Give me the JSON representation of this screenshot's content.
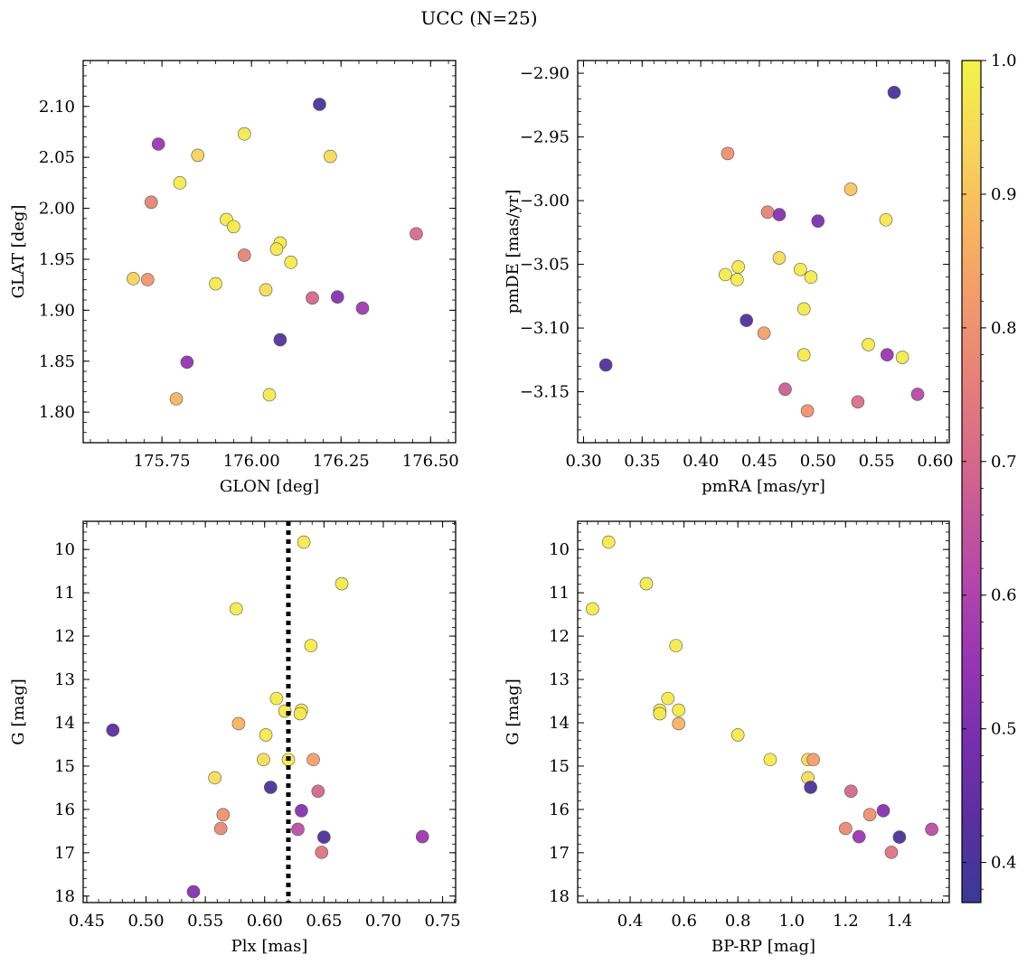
{
  "figure": {
    "title": "UCC (N=25)"
  },
  "colorbar": {
    "colormap": "plasma",
    "range": [
      0.37,
      1.0
    ],
    "ticks": [
      0.4,
      0.5,
      0.6,
      0.7,
      0.8,
      0.9,
      1.0
    ],
    "tick_labels": [
      "0.4",
      "0.5",
      "0.6",
      "0.7",
      "0.8",
      "0.9",
      "1.0"
    ]
  },
  "chart_data": [
    {
      "type": "scatter",
      "id": "lb",
      "xlabel": "GLON [deg]",
      "ylabel": "GLAT [deg]",
      "xlim": [
        175.53,
        176.57
      ],
      "ylim": [
        1.77,
        2.145
      ],
      "xticks": [
        175.75,
        176.0,
        176.25,
        176.5
      ],
      "xtick_labels": [
        "175.75",
        "176.00",
        "176.25",
        "176.50"
      ],
      "yticks": [
        1.8,
        1.85,
        1.9,
        1.95,
        2.0,
        2.05,
        2.1
      ],
      "ytick_labels": [
        "1.80",
        "1.85",
        "1.90",
        "1.95",
        "2.00",
        "2.05",
        "2.10"
      ],
      "y_inverted": false,
      "grid": false,
      "points": [
        {
          "x": 176.19,
          "y": 2.102,
          "c": 0.4
        },
        {
          "x": 175.74,
          "y": 2.063,
          "c": 0.56
        },
        {
          "x": 175.98,
          "y": 2.073,
          "c": 0.98
        },
        {
          "x": 175.85,
          "y": 2.052,
          "c": 0.93
        },
        {
          "x": 176.22,
          "y": 2.051,
          "c": 0.95
        },
        {
          "x": 175.8,
          "y": 2.025,
          "c": 0.98
        },
        {
          "x": 175.72,
          "y": 2.006,
          "c": 0.77
        },
        {
          "x": 175.93,
          "y": 1.989,
          "c": 0.98
        },
        {
          "x": 175.95,
          "y": 1.982,
          "c": 0.98
        },
        {
          "x": 176.46,
          "y": 1.975,
          "c": 0.71
        },
        {
          "x": 176.08,
          "y": 1.966,
          "c": 0.98
        },
        {
          "x": 175.98,
          "y": 1.954,
          "c": 0.77
        },
        {
          "x": 176.11,
          "y": 1.947,
          "c": 0.98
        },
        {
          "x": 175.67,
          "y": 1.931,
          "c": 0.93
        },
        {
          "x": 175.71,
          "y": 1.93,
          "c": 0.81
        },
        {
          "x": 175.9,
          "y": 1.926,
          "c": 0.98
        },
        {
          "x": 176.04,
          "y": 1.92,
          "c": 0.95
        },
        {
          "x": 176.17,
          "y": 1.912,
          "c": 0.7
        },
        {
          "x": 176.24,
          "y": 1.913,
          "c": 0.52
        },
        {
          "x": 176.31,
          "y": 1.902,
          "c": 0.57
        },
        {
          "x": 176.08,
          "y": 1.871,
          "c": 0.42
        },
        {
          "x": 175.82,
          "y": 1.849,
          "c": 0.54
        },
        {
          "x": 176.05,
          "y": 1.817,
          "c": 0.98
        },
        {
          "x": 175.79,
          "y": 1.813,
          "c": 0.87
        },
        {
          "x": 176.07,
          "y": 1.96,
          "c": 0.98
        }
      ]
    },
    {
      "type": "scatter",
      "id": "pm",
      "xlabel": "pmRA [mas/yr]",
      "ylabel": "pmDE [mas/yr]",
      "xlim": [
        0.295,
        0.612
      ],
      "ylim": [
        -3.19,
        -2.89
      ],
      "xticks": [
        0.3,
        0.35,
        0.4,
        0.45,
        0.5,
        0.55,
        0.6
      ],
      "xtick_labels": [
        "0.30",
        "0.35",
        "0.40",
        "0.45",
        "0.50",
        "0.55",
        "0.60"
      ],
      "yticks": [
        -3.15,
        -3.1,
        -3.05,
        -3.0,
        -2.95,
        -2.9
      ],
      "ytick_labels": [
        "−3.15",
        "−3.10",
        "−3.05",
        "−3.00",
        "−2.95",
        "−2.90"
      ],
      "y_inverted": false,
      "grid": false,
      "points": [
        {
          "x": 0.565,
          "y": -2.915,
          "c": 0.4
        },
        {
          "x": 0.423,
          "y": -2.963,
          "c": 0.8
        },
        {
          "x": 0.528,
          "y": -2.991,
          "c": 0.91
        },
        {
          "x": 0.457,
          "y": -3.009,
          "c": 0.77
        },
        {
          "x": 0.467,
          "y": -3.011,
          "c": 0.52
        },
        {
          "x": 0.5,
          "y": -3.016,
          "c": 0.5
        },
        {
          "x": 0.558,
          "y": -3.015,
          "c": 0.97
        },
        {
          "x": 0.467,
          "y": -3.045,
          "c": 0.95
        },
        {
          "x": 0.432,
          "y": -3.052,
          "c": 0.98
        },
        {
          "x": 0.485,
          "y": -3.054,
          "c": 0.98
        },
        {
          "x": 0.421,
          "y": -3.058,
          "c": 0.98
        },
        {
          "x": 0.494,
          "y": -3.06,
          "c": 0.98
        },
        {
          "x": 0.431,
          "y": -3.062,
          "c": 0.98
        },
        {
          "x": 0.488,
          "y": -3.085,
          "c": 0.98
        },
        {
          "x": 0.439,
          "y": -3.094,
          "c": 0.41
        },
        {
          "x": 0.454,
          "y": -3.104,
          "c": 0.83
        },
        {
          "x": 0.543,
          "y": -3.113,
          "c": 0.98
        },
        {
          "x": 0.488,
          "y": -3.121,
          "c": 0.98
        },
        {
          "x": 0.559,
          "y": -3.121,
          "c": 0.56
        },
        {
          "x": 0.572,
          "y": -3.123,
          "c": 0.98
        },
        {
          "x": 0.319,
          "y": -3.129,
          "c": 0.41
        },
        {
          "x": 0.472,
          "y": -3.148,
          "c": 0.68
        },
        {
          "x": 0.585,
          "y": -3.152,
          "c": 0.62
        },
        {
          "x": 0.534,
          "y": -3.158,
          "c": 0.72
        },
        {
          "x": 0.491,
          "y": -3.165,
          "c": 0.8
        }
      ]
    },
    {
      "type": "scatter",
      "id": "plx",
      "xlabel": "Plx [mas]",
      "ylabel": "G [mag]",
      "xlim": [
        0.447,
        0.761
      ],
      "ylim": [
        18.15,
        9.35
      ],
      "xticks": [
        0.45,
        0.5,
        0.55,
        0.6,
        0.65,
        0.7,
        0.75
      ],
      "xtick_labels": [
        "0.45",
        "0.50",
        "0.55",
        "0.60",
        "0.65",
        "0.70",
        "0.75"
      ],
      "yticks": [
        10,
        11,
        12,
        13,
        14,
        15,
        16,
        17,
        18
      ],
      "ytick_labels": [
        "10",
        "11",
        "12",
        "13",
        "14",
        "15",
        "16",
        "17",
        "18"
      ],
      "y_inverted": true,
      "grid": false,
      "vline": {
        "x": 0.62,
        "style": "dotted"
      },
      "points": [
        {
          "x": 0.633,
          "y": 9.83,
          "c": 0.98
        },
        {
          "x": 0.665,
          "y": 10.79,
          "c": 0.98
        },
        {
          "x": 0.576,
          "y": 11.37,
          "c": 0.98
        },
        {
          "x": 0.639,
          "y": 12.22,
          "c": 0.98
        },
        {
          "x": 0.61,
          "y": 13.44,
          "c": 0.98
        },
        {
          "x": 0.617,
          "y": 13.73,
          "c": 0.98
        },
        {
          "x": 0.631,
          "y": 13.71,
          "c": 0.98
        },
        {
          "x": 0.63,
          "y": 13.79,
          "c": 0.98
        },
        {
          "x": 0.578,
          "y": 14.02,
          "c": 0.87
        },
        {
          "x": 0.472,
          "y": 14.17,
          "c": 0.43
        },
        {
          "x": 0.601,
          "y": 14.28,
          "c": 0.98
        },
        {
          "x": 0.599,
          "y": 14.85,
          "c": 0.95
        },
        {
          "x": 0.62,
          "y": 14.85,
          "c": 0.98
        },
        {
          "x": 0.641,
          "y": 14.85,
          "c": 0.83
        },
        {
          "x": 0.558,
          "y": 15.27,
          "c": 0.95
        },
        {
          "x": 0.605,
          "y": 15.49,
          "c": 0.4
        },
        {
          "x": 0.645,
          "y": 15.58,
          "c": 0.7
        },
        {
          "x": 0.631,
          "y": 16.03,
          "c": 0.52
        },
        {
          "x": 0.565,
          "y": 16.12,
          "c": 0.8
        },
        {
          "x": 0.563,
          "y": 16.44,
          "c": 0.78
        },
        {
          "x": 0.628,
          "y": 16.46,
          "c": 0.63
        },
        {
          "x": 0.65,
          "y": 16.64,
          "c": 0.4
        },
        {
          "x": 0.733,
          "y": 16.63,
          "c": 0.56
        },
        {
          "x": 0.648,
          "y": 16.99,
          "c": 0.73
        },
        {
          "x": 0.54,
          "y": 17.9,
          "c": 0.52
        }
      ]
    },
    {
      "type": "scatter",
      "id": "cmd",
      "xlabel": "BP-RP [mag]",
      "ylabel": "G [mag]",
      "xlim": [
        0.205,
        1.585
      ],
      "ylim": [
        18.15,
        9.35
      ],
      "xticks": [
        0.4,
        0.6,
        0.8,
        1.0,
        1.2,
        1.4
      ],
      "xtick_labels": [
        "0.4",
        "0.6",
        "0.8",
        "1.0",
        "1.2",
        "1.4"
      ],
      "yticks": [
        10,
        11,
        12,
        13,
        14,
        15,
        16,
        17,
        18
      ],
      "ytick_labels": [
        "10",
        "11",
        "12",
        "13",
        "14",
        "15",
        "16",
        "17",
        "18"
      ],
      "y_inverted": true,
      "grid": false,
      "points": [
        {
          "x": 0.32,
          "y": 9.83,
          "c": 0.98
        },
        {
          "x": 0.46,
          "y": 10.79,
          "c": 0.98
        },
        {
          "x": 0.26,
          "y": 11.37,
          "c": 0.98
        },
        {
          "x": 0.57,
          "y": 12.22,
          "c": 0.98
        },
        {
          "x": 0.54,
          "y": 13.44,
          "c": 0.98
        },
        {
          "x": 0.51,
          "y": 13.71,
          "c": 0.98
        },
        {
          "x": 0.51,
          "y": 13.79,
          "c": 0.98
        },
        {
          "x": 0.58,
          "y": 13.71,
          "c": 0.98
        },
        {
          "x": 0.58,
          "y": 14.02,
          "c": 0.87
        },
        {
          "x": 0.8,
          "y": 14.28,
          "c": 0.98
        },
        {
          "x": 0.92,
          "y": 14.85,
          "c": 0.98
        },
        {
          "x": 1.06,
          "y": 14.85,
          "c": 0.95
        },
        {
          "x": 1.08,
          "y": 14.85,
          "c": 0.83
        },
        {
          "x": 1.06,
          "y": 15.27,
          "c": 0.95
        },
        {
          "x": 1.07,
          "y": 15.49,
          "c": 0.4
        },
        {
          "x": 1.22,
          "y": 15.58,
          "c": 0.7
        },
        {
          "x": 1.34,
          "y": 16.03,
          "c": 0.52
        },
        {
          "x": 1.29,
          "y": 16.12,
          "c": 0.8
        },
        {
          "x": 1.2,
          "y": 16.44,
          "c": 0.78
        },
        {
          "x": 1.52,
          "y": 16.46,
          "c": 0.63
        },
        {
          "x": 1.25,
          "y": 16.63,
          "c": 0.56
        },
        {
          "x": 1.4,
          "y": 16.64,
          "c": 0.4
        },
        {
          "x": 1.37,
          "y": 16.99,
          "c": 0.73
        }
      ]
    }
  ]
}
